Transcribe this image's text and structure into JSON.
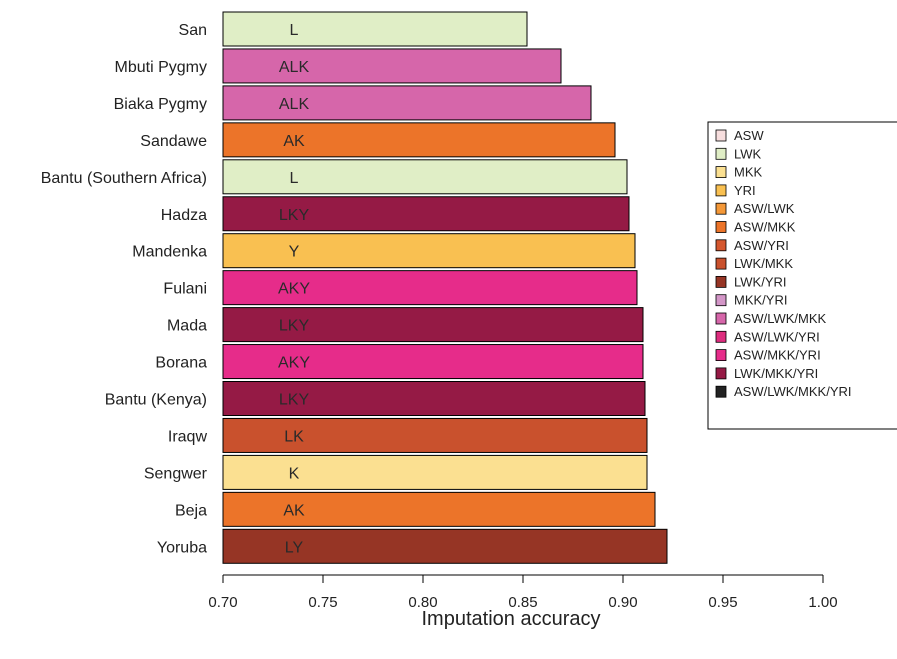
{
  "chart_data": {
    "type": "bar",
    "orientation": "horizontal",
    "xlabel": "Imputation accuracy",
    "xlim": [
      0.7,
      1.0
    ],
    "xticks": [
      "0.70",
      "0.75",
      "0.80",
      "0.85",
      "0.90",
      "0.95",
      "1.00"
    ],
    "categories": [
      "San",
      "Mbuti Pygmy",
      "Biaka Pygmy",
      "Sandawe",
      "Bantu (Southern Africa)",
      "Hadza",
      "Mandenka",
      "Fulani",
      "Mada",
      "Borana",
      "Bantu (Kenya)",
      "Iraqw",
      "Sengwer",
      "Beja",
      "Yoruba"
    ],
    "values": [
      0.852,
      0.869,
      0.884,
      0.896,
      0.902,
      0.903,
      0.906,
      0.907,
      0.91,
      0.91,
      0.911,
      0.912,
      0.912,
      0.916,
      0.922
    ],
    "bar_labels": [
      "L",
      "ALK",
      "ALK",
      "AK",
      "L",
      "LKY",
      "Y",
      "AKY",
      "LKY",
      "AKY",
      "LKY",
      "LK",
      "K",
      "AK",
      "LY"
    ],
    "bar_groups": [
      "LWK",
      "ASW/LWK/MKK",
      "ASW/LWK/MKK",
      "ASW/MKK",
      "LWK",
      "LWK/MKK/YRI",
      "YRI",
      "ASW/MKK/YRI",
      "LWK/MKK/YRI",
      "ASW/MKK/YRI",
      "LWK/MKK/YRI",
      "LWK/MKK",
      "MKK",
      "ASW/MKK",
      "LWK/YRI"
    ],
    "legend_position": "right",
    "legend": [
      {
        "name": "ASW",
        "color": "#f7dede"
      },
      {
        "name": "LWK",
        "color": "#e0eec6"
      },
      {
        "name": "MKK",
        "color": "#fbe091"
      },
      {
        "name": "YRI",
        "color": "#f9c051"
      },
      {
        "name": "ASW/LWK",
        "color": "#f49838"
      },
      {
        "name": "ASW/MKK",
        "color": "#ec7429"
      },
      {
        "name": "ASW/YRI",
        "color": "#d5572e"
      },
      {
        "name": "LWK/MKK",
        "color": "#c9512d"
      },
      {
        "name": "LWK/YRI",
        "color": "#963525"
      },
      {
        "name": "MKK/YRI",
        "color": "#d396c7"
      },
      {
        "name": "ASW/LWK/MKK",
        "color": "#d666aa"
      },
      {
        "name": "ASW/LWK/YRI",
        "color": "#dd2d7e"
      },
      {
        "name": "ASW/MKK/YRI",
        "color": "#e62c8a"
      },
      {
        "name": "LWK/MKK/YRI",
        "color": "#951a45"
      },
      {
        "name": "ASW/LWK/MKK/YRI",
        "color": "#222222"
      }
    ]
  }
}
